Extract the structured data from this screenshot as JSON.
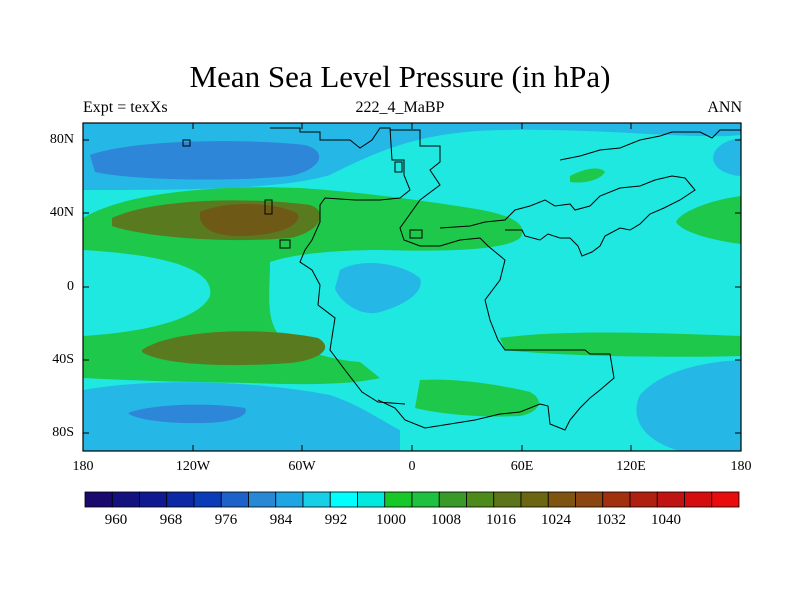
{
  "title": "Mean Sea Level Pressure (in hPa)",
  "left_string": "Expt = texXs",
  "center_string": "222_4_MaBP",
  "right_string": "ANN",
  "lat_labels": [
    "80N",
    "40N",
    "0",
    "40S",
    "80S"
  ],
  "lon_labels": [
    "180",
    "120W",
    "60W",
    "0",
    "60E",
    "120E",
    "180"
  ],
  "colorbar": {
    "labels": [
      "960",
      "968",
      "976",
      "984",
      "992",
      "1000",
      "1008",
      "1016",
      "1024",
      "1032",
      "1040"
    ],
    "colors": [
      "#1a0a6e",
      "#14127e",
      "#101a90",
      "#0c28a4",
      "#0a3cb8",
      "#1c62c8",
      "#2888d4",
      "#1ea6e4",
      "#18cfe8",
      "#00ffff",
      "#00e8e0",
      "#18c828",
      "#20c040",
      "#3a9a28",
      "#4e8a1a",
      "#5e7418",
      "#6c6612",
      "#7e5410",
      "#8c4410",
      "#a0300e",
      "#b02010",
      "#c01412",
      "#d40e0e",
      "#e80c0c"
    ]
  },
  "fill_colors": {
    "ocean_base": "#1ee8e0",
    "mid": "#25b8e6",
    "low": "#2e86d8",
    "green": "#1ec84a",
    "olive": "#5a7a20",
    "brown": "#6e5a16"
  }
}
